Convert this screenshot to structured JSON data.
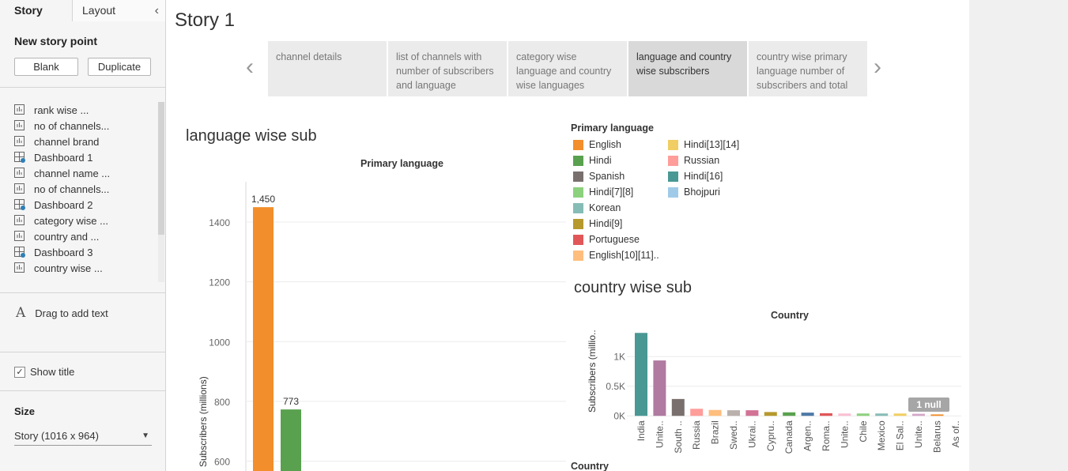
{
  "left_panel": {
    "tabs": {
      "story": "Story",
      "layout": "Layout"
    },
    "new_story_point": "New story point",
    "blank_button": "Blank",
    "duplicate_button": "Duplicate",
    "sheets": [
      {
        "label": "rank wise ...",
        "kind": "sheet"
      },
      {
        "label": "no of channels...",
        "kind": "sheet"
      },
      {
        "label": "channel brand",
        "kind": "sheet"
      },
      {
        "label": "Dashboard 1",
        "kind": "dashboard"
      },
      {
        "label": "channel name ...",
        "kind": "sheet"
      },
      {
        "label": "no of channels...",
        "kind": "sheet"
      },
      {
        "label": "Dashboard 2",
        "kind": "dashboard"
      },
      {
        "label": "category wise ...",
        "kind": "sheet"
      },
      {
        "label": "country and ...",
        "kind": "sheet"
      },
      {
        "label": "Dashboard 3",
        "kind": "dashboard"
      },
      {
        "label": "country wise ...",
        "kind": "sheet"
      }
    ],
    "drag_text": "Drag to add text",
    "drag_text_icon": "A",
    "show_title": "Show title",
    "show_title_checked": true,
    "size_label": "Size",
    "size_value": "Story (1016 x 964)"
  },
  "story": {
    "title": "Story 1",
    "points": [
      {
        "text": "channel details",
        "active": false
      },
      {
        "text": "list of channels with number of subscribers and language",
        "active": false
      },
      {
        "text": "category wise language and country wise languages",
        "active": false
      },
      {
        "text": "language and country wise subscribers",
        "active": true
      },
      {
        "text": "country wise primary language number of subscribers and total",
        "active": false
      }
    ],
    "prev_arrow": "‹",
    "next_arrow": "›"
  },
  "language_sheet": {
    "title": "language wise sub",
    "header": "Primary language"
  },
  "legend": {
    "title": "Primary language",
    "items": [
      {
        "label": "English",
        "color": "#f28e2b"
      },
      {
        "label": "Hindi",
        "color": "#59a14f"
      },
      {
        "label": "Spanish",
        "color": "#79706e"
      },
      {
        "label": "Hindi[7][8]",
        "color": "#8cd17d"
      },
      {
        "label": "Korean",
        "color": "#86bcb6"
      },
      {
        "label": "Hindi[9]",
        "color": "#b6992d"
      },
      {
        "label": "Portuguese",
        "color": "#e15759"
      },
      {
        "label": "English[10][11]..",
        "color": "#ffbe7d"
      },
      {
        "label": "Hindi[13][14]",
        "color": "#f1ce63"
      },
      {
        "label": "Russian",
        "color": "#ff9d9a"
      },
      {
        "label": "Hindi[16]",
        "color": "#499894"
      },
      {
        "label": "Bhojpuri",
        "color": "#a0cbe8"
      }
    ]
  },
  "country_sheet": {
    "title": "country wise sub",
    "header": "Country",
    "null_badge": "1 null",
    "partial_header": "Country"
  },
  "chart_data": [
    {
      "type": "bar",
      "title": "",
      "xlabel": "Primary language",
      "ylabel": "Subscribers (millions)",
      "categories": [
        "English",
        "Hindi"
      ],
      "values": [
        1450,
        773
      ],
      "data_labels": [
        "1,450",
        "773"
      ],
      "colors": [
        "#f28e2b",
        "#59a14f"
      ],
      "yticks": [
        600,
        800,
        1000,
        1200,
        1400
      ],
      "ylim": [
        567,
        1535
      ],
      "grid": true
    },
    {
      "type": "bar",
      "title": "",
      "xlabel": "Country",
      "ylabel": "Subscribers (millio..",
      "categories": [
        "India",
        "Unite..",
        "South ..",
        "Russia",
        "Brazil",
        "Swed..",
        "Ukrai..",
        "Cypru..",
        "Canada",
        "Argen..",
        "Roma..",
        "Unite..",
        "Chile",
        "Mexico",
        "El Sal..",
        "Unite..",
        "Belarus",
        "As of.."
      ],
      "values": [
        1400,
        935,
        285,
        120,
        100,
        95,
        95,
        65,
        60,
        55,
        45,
        40,
        40,
        40,
        40,
        35,
        25,
        0
      ],
      "colors": [
        "#499894",
        "#b07aa1",
        "#79706e",
        "#ff9d9a",
        "#ffbe7d",
        "#bab0ac",
        "#d37295",
        "#b6992d",
        "#59a14f",
        "#4e79a7",
        "#e15759",
        "#fabfd2",
        "#8cd17d",
        "#86bcb6",
        "#f1ce63",
        "#d4a6c8",
        "#f28e2b",
        "#cccccc"
      ],
      "yticks": [
        0,
        500,
        1000
      ],
      "ytick_labels": [
        "0K",
        "0.5K",
        "1K"
      ],
      "ylim": [
        -50,
        1550
      ],
      "grid": true
    }
  ]
}
